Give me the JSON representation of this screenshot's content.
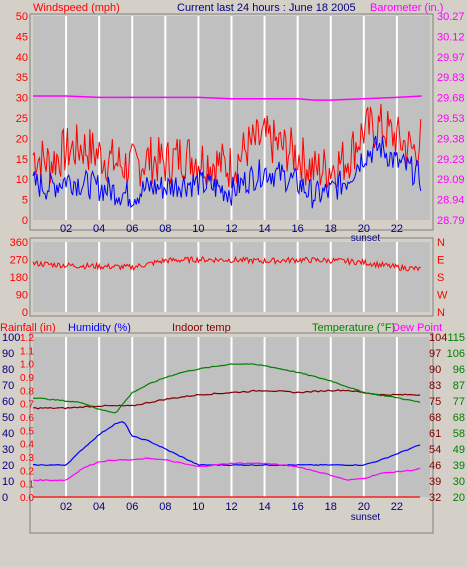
{
  "header": {
    "left": "Windspeed (mph)",
    "center": "Current last 24 hours : June 18 2005",
    "right": "Barometer (in.)"
  },
  "colors": {
    "bg": "#d4d0c8",
    "plot_bg": "#c0c0c0",
    "grid": "#ffffff",
    "red": "#ff0000",
    "blue": "#0000ff",
    "magenta": "#ff00ff",
    "maroon": "#800000",
    "green": "#008000",
    "darkblue": "#000080"
  },
  "x_ticks": [
    "02",
    "04",
    "06",
    "08",
    "10",
    "12",
    "14",
    "16",
    "18",
    "20",
    "22"
  ],
  "sunset_label": "sunset",
  "chart_data": [
    {
      "type": "line",
      "name": "wind-panel",
      "x_range": [
        0,
        24
      ],
      "y_left": {
        "label": "Windspeed (mph)",
        "ticks": [
          0,
          5,
          10,
          15,
          20,
          25,
          30,
          35,
          40,
          45,
          50
        ],
        "range": [
          0,
          50
        ]
      },
      "y_right": {
        "label": "Barometer (in.)",
        "ticks": [
          "28.79",
          "28.94",
          "29.09",
          "29.23",
          "29.38",
          "29.53",
          "29.68",
          "29.83",
          "29.97",
          "30.12",
          "30.27"
        ],
        "range": [
          28.79,
          30.27
        ]
      },
      "series": [
        {
          "name": "Barometer (in.)",
          "x": [
            0,
            2,
            4,
            6,
            8,
            10,
            12,
            14,
            16,
            17,
            18,
            20,
            22,
            23.5
          ],
          "values": [
            29.69,
            29.69,
            29.68,
            29.68,
            29.68,
            29.68,
            29.67,
            29.67,
            29.67,
            29.66,
            29.66,
            29.67,
            29.68,
            29.69
          ]
        },
        {
          "name": "Windspeed gust",
          "x": [
            0,
            1,
            2,
            3,
            4,
            5,
            6,
            7,
            8,
            9,
            10,
            11,
            12,
            13,
            14,
            15,
            16,
            17,
            18,
            19,
            20,
            21,
            22,
            23,
            23.5
          ],
          "values": [
            16,
            14,
            17,
            18,
            16,
            14,
            13,
            15,
            14,
            16,
            15,
            14,
            13,
            18,
            20,
            18,
            16,
            12,
            13,
            15,
            22,
            23,
            20,
            17,
            20
          ]
        },
        {
          "name": "Windspeed avg",
          "x": [
            0,
            1,
            2,
            3,
            4,
            5,
            6,
            7,
            8,
            9,
            10,
            11,
            12,
            13,
            14,
            15,
            16,
            17,
            18,
            19,
            20,
            21,
            22,
            23,
            23.5
          ],
          "values": [
            9,
            8,
            10,
            9,
            8,
            7,
            6,
            8,
            8,
            9,
            9,
            8,
            7,
            10,
            12,
            11,
            9,
            6,
            7,
            10,
            16,
            18,
            14,
            12,
            10
          ]
        }
      ]
    },
    {
      "type": "line",
      "name": "wind-direction-panel",
      "x_range": [
        0,
        24
      ],
      "y_left": {
        "ticks": [
          0,
          90,
          180,
          270,
          360
        ],
        "range": [
          0,
          360
        ]
      },
      "y_right": {
        "ticks": [
          "N",
          "E",
          "S",
          "W",
          "N"
        ]
      },
      "series": [
        {
          "name": "Wind direction",
          "x": [
            0,
            2,
            4,
            6,
            8,
            10,
            12,
            14,
            16,
            18,
            20,
            22,
            23.5
          ],
          "values": [
            250,
            240,
            235,
            230,
            265,
            270,
            268,
            262,
            268,
            265,
            255,
            230,
            220
          ]
        }
      ]
    },
    {
      "type": "line",
      "name": "rain-temp-panel",
      "header": {
        "rainfall": "Rainfall (in)",
        "humidity": "Humidity (%)",
        "indoor": "Indoor temp",
        "temperature": "Temperature (°F)",
        "dewpoint": "Dew Point"
      },
      "x_range": [
        0,
        24
      ],
      "y_rain": {
        "ticks": [
          "0.0",
          "0.1",
          "0.2",
          "0.3",
          "0.4",
          "0.5",
          "0.6",
          "0.7",
          "0.8",
          "0.9",
          "1.0",
          "1.1",
          "1.2"
        ],
        "range": [
          0,
          1.2
        ]
      },
      "y_humidity": {
        "ticks": [
          0,
          10,
          20,
          30,
          40,
          50,
          60,
          70,
          80,
          90,
          100
        ],
        "range": [
          0,
          100
        ]
      },
      "y_indoor": {
        "ticks": [
          32,
          39,
          46,
          54,
          61,
          68,
          75,
          83,
          90,
          97,
          104
        ],
        "range": [
          32,
          104
        ]
      },
      "y_temp": {
        "ticks": [
          20,
          30,
          39,
          49,
          58,
          68,
          77,
          87,
          96,
          106,
          115
        ],
        "range": [
          20,
          115
        ]
      },
      "series": [
        {
          "name": "Rainfall (in)",
          "axis": "rain",
          "x": [
            0,
            23.5
          ],
          "values": [
            0,
            0
          ]
        },
        {
          "name": "Humidity (%)",
          "axis": "humidity",
          "x": [
            0,
            2,
            3,
            4,
            5,
            5.5,
            6,
            7,
            8,
            9,
            10,
            12,
            14,
            16,
            18,
            19,
            20,
            21,
            22,
            23,
            23.5
          ],
          "values": [
            20,
            20,
            30,
            39,
            46,
            47,
            38,
            35,
            30,
            25,
            20,
            20,
            20,
            20,
            20,
            20,
            20,
            23,
            27,
            31,
            33
          ]
        },
        {
          "name": "Indoor temp",
          "axis": "indoor",
          "x": [
            0,
            2,
            4,
            6,
            8,
            10,
            12,
            14,
            16,
            18,
            19,
            20,
            21,
            22,
            23.5
          ],
          "values": [
            72,
            72,
            73,
            73,
            76,
            78,
            79,
            80,
            79,
            80,
            80,
            79,
            78,
            78,
            78
          ]
        },
        {
          "name": "Temperature (°F)",
          "axis": "temp",
          "x": [
            0,
            2,
            3,
            4,
            5,
            6,
            7,
            8,
            9,
            10,
            12,
            13,
            14,
            15,
            16,
            18,
            20,
            22,
            23.5
          ],
          "values": [
            79,
            77,
            76,
            72,
            70,
            82,
            87,
            91,
            94,
            96,
            99,
            99,
            98,
            96,
            94,
            89,
            82,
            79,
            76
          ]
        },
        {
          "name": "Dew Point",
          "axis": "temp",
          "x": [
            0,
            2,
            3,
            4,
            5,
            6,
            7,
            8,
            9,
            10,
            11,
            12,
            14,
            16,
            18,
            19,
            20,
            21,
            22,
            23,
            23.5
          ],
          "values": [
            30,
            30,
            37,
            41,
            42,
            42,
            43,
            42,
            40,
            38,
            39,
            40,
            40,
            38,
            33,
            30,
            31,
            34,
            35,
            36,
            37
          ]
        }
      ]
    }
  ]
}
